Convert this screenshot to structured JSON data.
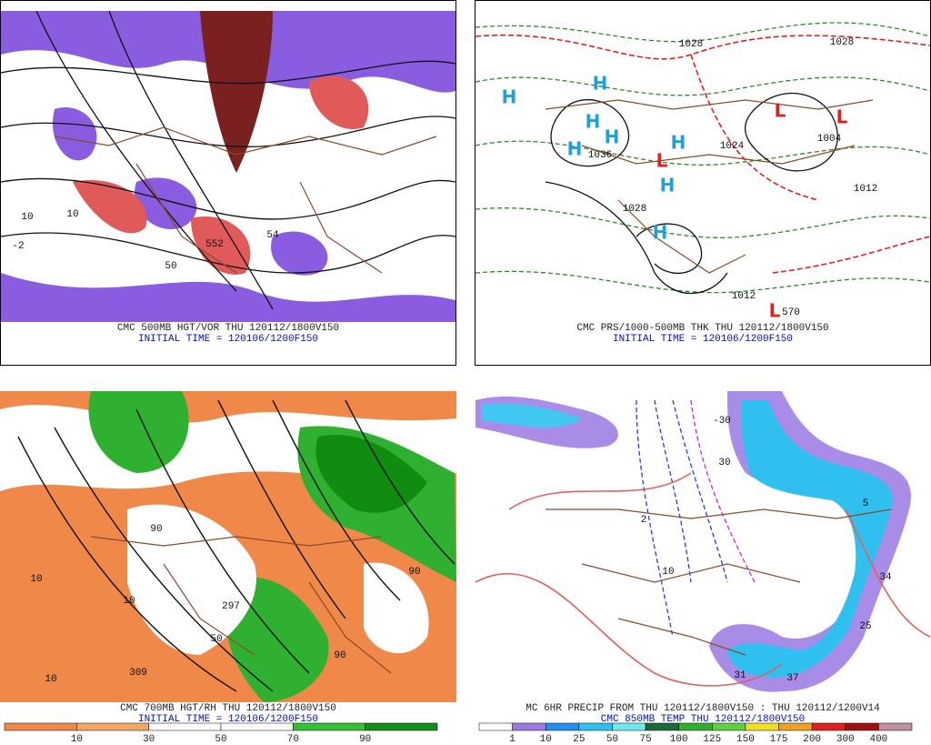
{
  "panels": [
    {
      "caption": [
        "CMC 500MB HGT/VOR THU 120112/1800V150",
        "INITIAL TIME = 120106/1200F150"
      ],
      "map_labels": [
        "10",
        "552",
        "50",
        "54",
        "-2",
        "10"
      ]
    },
    {
      "caption": [
        "CMC PRS/1000-500MB THK THU 120112/1800V150",
        "INITIAL TIME = 120106/1200F150"
      ],
      "map_labels": [
        "H",
        "H",
        "H",
        "H",
        "H",
        "H",
        "H",
        "H",
        "L",
        "L",
        "L",
        "L",
        "1028",
        "1028",
        "1024",
        "1004",
        "1012",
        "1028",
        "1012",
        "570",
        "1036"
      ]
    },
    {
      "caption": [
        "CMC 700MB HGT/RH THU 120112/1800V150",
        "INITIAL TIME = 120106/1200F150"
      ],
      "map_labels": [
        "10",
        "10",
        "90",
        "297",
        "50",
        "309",
        "10",
        "90",
        "90"
      ],
      "colorbar": {
        "labels": [
          10,
          30,
          50,
          70,
          90
        ],
        "colors": [
          "#f0884a",
          "#f4a868",
          "#ffffff",
          "#ffffff",
          "#36c036",
          "#12901a"
        ]
      }
    },
    {
      "caption": [
        "MC 6HR PRECIP FROM THU 120112/1800V150 : THU 120112/1200V14",
        "CMC 850MB TEMP THU 120112/1800V150"
      ],
      "map_labels": [
        "2",
        "10",
        "30",
        "5",
        "34",
        "25",
        "31",
        "37",
        "-30"
      ],
      "colorbar": {
        "labels": [
          1,
          10,
          25,
          50,
          75,
          100,
          125,
          150,
          175,
          200,
          300,
          400
        ],
        "colors": [
          "#ffffff",
          "#9a7ae0",
          "#2090f0",
          "#30c0f0",
          "#70e8f0",
          "#1a6a3a",
          "#30b030",
          "#60d040",
          "#f0e020",
          "#f0a020",
          "#e02020",
          "#a01010",
          "#c090a0"
        ]
      }
    }
  ]
}
